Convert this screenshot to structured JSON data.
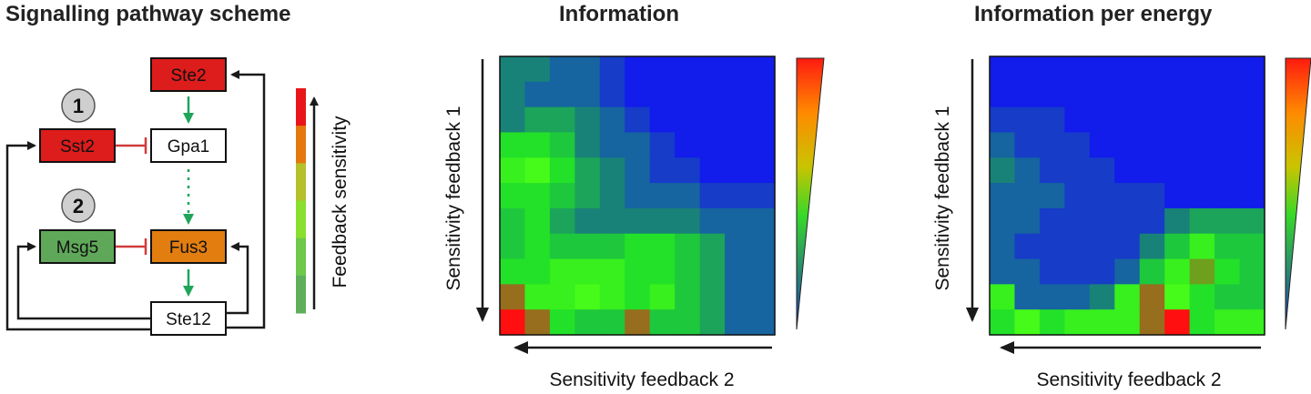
{
  "titles": {
    "scheme": "Signalling pathway scheme",
    "information": "Information",
    "info_per_energy": "Information per energy"
  },
  "scheme": {
    "nodes": {
      "ste2": "Ste2",
      "sst2": "Sst2",
      "gpa1": "Gpa1",
      "msg5": "Msg5",
      "fus3": "Fus3",
      "ste12": "Ste12"
    },
    "markers": {
      "one": "1",
      "two": "2"
    },
    "colors": {
      "red": "#dd1c1c",
      "orange": "#e27d10",
      "green_box": "#5fa859",
      "inhibit": "#d13b3b",
      "activate": "#1fa55a"
    },
    "legend": {
      "label": "Feedback sensitivity",
      "scale_colors": [
        "#e8161a",
        "#e4780f",
        "#b6c02a",
        "#8adf2e",
        "#6ec84a",
        "#5fae5c"
      ]
    }
  },
  "heatmaps": {
    "info": {
      "ylabel": "Sensitivity feedback 1",
      "xlabel": "Sensitivity feedback 2",
      "rows": [
        [
          3,
          3,
          2,
          2,
          1,
          0,
          0,
          0,
          0,
          0,
          0
        ],
        [
          3,
          2,
          2,
          2,
          1,
          0,
          0,
          0,
          0,
          0,
          0
        ],
        [
          3,
          4,
          4,
          3,
          2,
          1,
          0,
          0,
          0,
          0,
          0
        ],
        [
          6,
          6,
          5,
          3,
          2,
          2,
          1,
          0,
          0,
          0,
          0
        ],
        [
          7,
          8,
          6,
          4,
          3,
          2,
          1,
          1,
          0,
          0,
          0
        ],
        [
          6,
          6,
          5,
          4,
          3,
          2,
          2,
          2,
          1,
          1,
          1
        ],
        [
          5,
          6,
          4,
          3,
          3,
          3,
          3,
          3,
          2,
          2,
          2
        ],
        [
          5,
          6,
          5,
          5,
          5,
          6,
          6,
          5,
          4,
          2,
          2
        ],
        [
          6,
          6,
          7,
          7,
          7,
          6,
          6,
          5,
          4,
          2,
          2
        ],
        [
          10,
          7,
          7,
          8,
          7,
          6,
          7,
          5,
          4,
          2,
          2
        ],
        [
          13,
          10,
          6,
          5,
          5,
          10,
          5,
          5,
          4,
          2,
          2
        ]
      ]
    },
    "per_energy": {
      "ylabel": "Sensitivity feedback 1",
      "xlabel": "Sensitivity feedback 2",
      "rows": [
        [
          0,
          0,
          0,
          0,
          0,
          0,
          0,
          0,
          0,
          0,
          0
        ],
        [
          0,
          0,
          0,
          0,
          0,
          0,
          0,
          0,
          0,
          0,
          0
        ],
        [
          1,
          1,
          1,
          0,
          0,
          0,
          0,
          0,
          0,
          0,
          0
        ],
        [
          2,
          1,
          1,
          1,
          0,
          0,
          0,
          0,
          0,
          0,
          0
        ],
        [
          3,
          2,
          1,
          1,
          1,
          0,
          0,
          0,
          0,
          0,
          0
        ],
        [
          2,
          2,
          2,
          1,
          1,
          1,
          1,
          0,
          0,
          0,
          0
        ],
        [
          2,
          2,
          1,
          1,
          1,
          1,
          1,
          3,
          4,
          4,
          4
        ],
        [
          2,
          1,
          1,
          1,
          1,
          1,
          3,
          5,
          7,
          5,
          5
        ],
        [
          2,
          2,
          1,
          1,
          1,
          2,
          5,
          7,
          9,
          6,
          5
        ],
        [
          7,
          2,
          2,
          2,
          3,
          7,
          10,
          8,
          6,
          5,
          5
        ],
        [
          6,
          8,
          6,
          7,
          7,
          7,
          10,
          13,
          6,
          7,
          7
        ]
      ]
    },
    "colorbar_stops": [
      "#ff1a10",
      "#ff8a00",
      "#c9c400",
      "#37d82a",
      "#2a8a70",
      "#1c3cb8"
    ]
  }
}
